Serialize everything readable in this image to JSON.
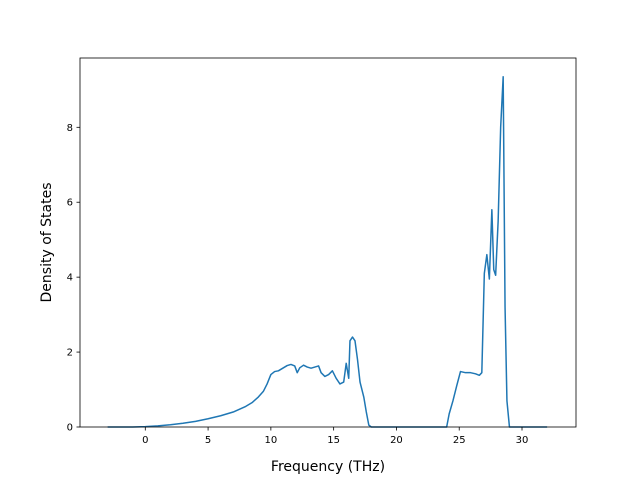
{
  "chart_data": {
    "type": "line",
    "xlabel": "Frequency (THz)",
    "ylabel": "Density of States",
    "xlim": [
      -5.2,
      34.3
    ],
    "ylim": [
      0,
      9.85
    ],
    "xticks": [
      0,
      5,
      10,
      15,
      20,
      25,
      30
    ],
    "yticks": [
      0,
      2,
      4,
      6,
      8
    ],
    "xtick_labels": [
      "0",
      "5",
      "10",
      "15",
      "20",
      "25",
      "30"
    ],
    "ytick_labels": [
      "0",
      "2",
      "4",
      "6",
      "8"
    ],
    "grid": false,
    "series": [
      {
        "color": "#1f77b4",
        "x": [
          -3.0,
          -1.0,
          0.0,
          1.0,
          2.0,
          3.0,
          4.0,
          5.0,
          6.0,
          7.0,
          8.0,
          8.5,
          9.0,
          9.4,
          9.7,
          10.0,
          10.3,
          10.6,
          11.0,
          11.3,
          11.6,
          11.9,
          12.1,
          12.3,
          12.6,
          12.9,
          13.2,
          13.5,
          13.8,
          14.0,
          14.3,
          14.6,
          14.9,
          15.2,
          15.5,
          15.8,
          16.0,
          16.2,
          16.3,
          16.5,
          16.7,
          16.9,
          17.1,
          17.4,
          17.6,
          17.8,
          18.0,
          20.0,
          22.0,
          24.0,
          24.2,
          24.5,
          24.8,
          25.1,
          25.5,
          25.9,
          26.3,
          26.6,
          26.8,
          27.0,
          27.2,
          27.4,
          27.6,
          27.75,
          27.9,
          28.1,
          28.3,
          28.5,
          28.65,
          28.8,
          29.0,
          29.2,
          29.5,
          30.0,
          32.0
        ],
        "y": [
          0,
          0,
          0.01,
          0.03,
          0.06,
          0.1,
          0.15,
          0.22,
          0.3,
          0.4,
          0.55,
          0.65,
          0.8,
          0.95,
          1.15,
          1.4,
          1.48,
          1.5,
          1.58,
          1.64,
          1.67,
          1.63,
          1.45,
          1.58,
          1.65,
          1.6,
          1.57,
          1.6,
          1.63,
          1.45,
          1.35,
          1.4,
          1.5,
          1.3,
          1.15,
          1.2,
          1.7,
          1.3,
          2.3,
          2.4,
          2.3,
          1.8,
          1.2,
          0.8,
          0.4,
          0.05,
          0,
          0,
          0,
          0,
          0.35,
          0.7,
          1.1,
          1.48,
          1.45,
          1.45,
          1.42,
          1.38,
          1.45,
          4.1,
          4.6,
          3.95,
          5.8,
          4.2,
          4.05,
          5.5,
          8.0,
          9.35,
          3.2,
          0.7,
          0,
          0,
          0,
          0,
          0
        ]
      }
    ]
  }
}
